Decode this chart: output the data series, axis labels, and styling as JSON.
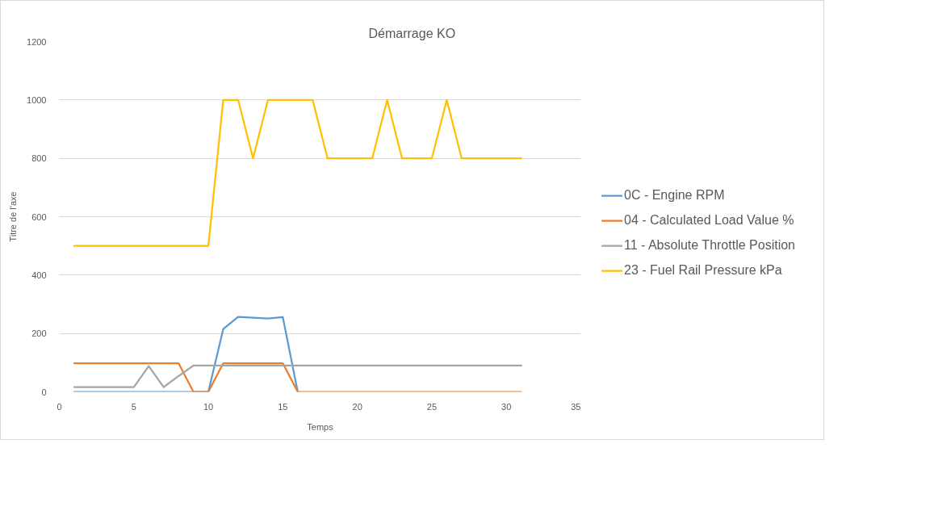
{
  "chart_data": {
    "type": "line",
    "title": "Démarrage KO",
    "xlabel": "Temps",
    "ylabel": "Titre de l'axe",
    "x": [
      1,
      2,
      3,
      4,
      5,
      6,
      7,
      8,
      9,
      10,
      11,
      12,
      13,
      14,
      15,
      16,
      17,
      18,
      19,
      20,
      21,
      22,
      23,
      24,
      25,
      26,
      27,
      28,
      29,
      30,
      31
    ],
    "xlim": [
      0,
      35
    ],
    "xticks": [
      0,
      5,
      10,
      15,
      20,
      25,
      30,
      35
    ],
    "ylim": [
      0,
      1200
    ],
    "yticks": [
      0,
      200,
      400,
      600,
      800,
      1000,
      1200
    ],
    "grid": "y",
    "legend": "right",
    "marker": "none",
    "line_style": "solid",
    "series": [
      {
        "name": "0C - Engine RPM",
        "color": "#5b9bd5",
        "values": [
          0,
          0,
          0,
          0,
          0,
          0,
          0,
          0,
          0,
          0,
          215,
          257,
          254,
          251,
          256,
          0,
          null,
          null,
          null,
          null,
          null,
          null,
          null,
          null,
          null,
          null,
          null,
          null,
          null,
          null,
          null
        ]
      },
      {
        "name": "04 - Calculated Load Value %",
        "color": "#ed7d31",
        "values": [
          98,
          98,
          98,
          98,
          98,
          98,
          98,
          98,
          0,
          0,
          98,
          98,
          98,
          98,
          98,
          0,
          0,
          0,
          0,
          0,
          0,
          0,
          0,
          0,
          0,
          0,
          0,
          0,
          0,
          0,
          0
        ]
      },
      {
        "name": "11 - Absolute Throttle Position",
        "color": "#a5a5a5",
        "values": [
          16,
          16,
          16,
          16,
          16,
          88,
          16,
          54,
          90,
          90,
          90,
          90,
          90,
          90,
          90,
          90,
          90,
          90,
          90,
          90,
          90,
          90,
          90,
          90,
          90,
          90,
          90,
          90,
          90,
          90,
          90
        ]
      },
      {
        "name": "23 - Fuel Rail Pressure kPa",
        "color": "#ffc000",
        "values": [
          500,
          500,
          500,
          500,
          500,
          500,
          500,
          500,
          500,
          500,
          1000,
          1000,
          800,
          1000,
          1000,
          1000,
          1000,
          800,
          800,
          800,
          800,
          1000,
          800,
          800,
          800,
          1000,
          800,
          800,
          800,
          800,
          800
        ]
      }
    ]
  }
}
